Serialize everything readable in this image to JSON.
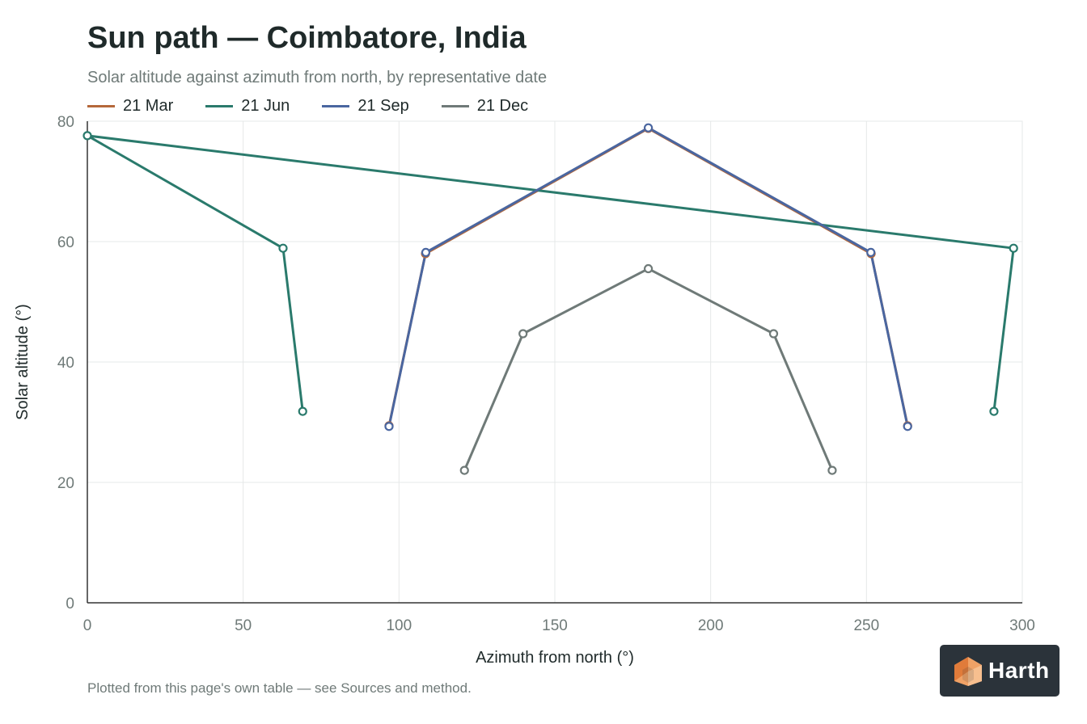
{
  "title": "Sun path — Coimbatore, India",
  "subtitle": "Solar altitude against azimuth from north, by representative date",
  "footnote": "Plotted from this page's own table — see Sources and method.",
  "logo": {
    "text": "Harth"
  },
  "colors": {
    "mar": "#b5683a",
    "jun": "#2a7a6c",
    "sep": "#4a66a0",
    "dec": "#6f7a78",
    "grid": "#e6e8e8",
    "axis": "#333333",
    "tick_text": "#6f7a78"
  },
  "chart_data": {
    "type": "line",
    "title": "Sun path — Coimbatore, India",
    "xlabel": "Azimuth from north (°)",
    "ylabel": "Solar altitude (°)",
    "xlim": [
      0,
      300
    ],
    "ylim": [
      0,
      80
    ],
    "xticks": [
      0,
      50,
      100,
      150,
      200,
      250,
      300
    ],
    "yticks": [
      0,
      20,
      40,
      60,
      80
    ],
    "grid": true,
    "legend_position": "top-left",
    "series": [
      {
        "name": "21 Mar",
        "color": "#b5683a",
        "points": [
          [
            96.8,
            29.4
          ],
          [
            108.5,
            58.0
          ],
          [
            180,
            78.8
          ],
          [
            251.5,
            58.0
          ],
          [
            263.2,
            29.4
          ]
        ]
      },
      {
        "name": "21 Jun",
        "color": "#2a7a6c",
        "points": [
          [
            69.1,
            31.8
          ],
          [
            62.8,
            58.9
          ],
          [
            0,
            77.6
          ],
          [
            297.2,
            58.9
          ],
          [
            290.9,
            31.8
          ]
        ]
      },
      {
        "name": "21 Sep",
        "color": "#4a66a0",
        "points": [
          [
            96.8,
            29.3
          ],
          [
            108.6,
            58.2
          ],
          [
            180,
            78.9
          ],
          [
            251.4,
            58.2
          ],
          [
            263.2,
            29.3
          ]
        ]
      },
      {
        "name": "21 Dec",
        "color": "#6f7a78",
        "points": [
          [
            121.0,
            22.0
          ],
          [
            139.8,
            44.7
          ],
          [
            180,
            55.5
          ],
          [
            220.2,
            44.7
          ],
          [
            239.0,
            22.0
          ]
        ]
      }
    ]
  }
}
